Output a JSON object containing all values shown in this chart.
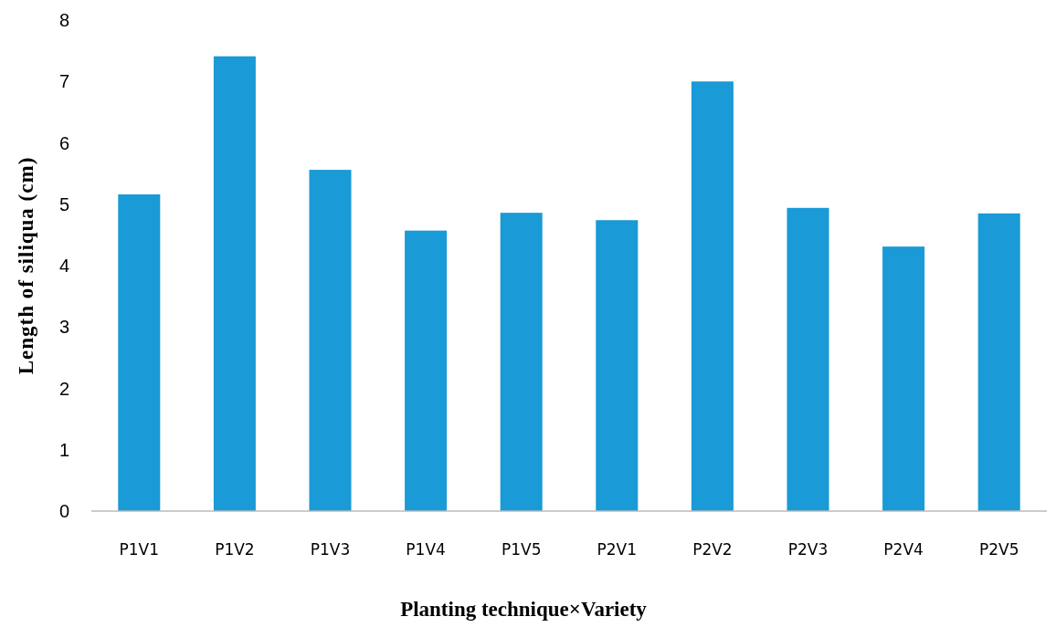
{
  "chart_data": {
    "type": "bar",
    "xlabel": "Planting technique×Variety",
    "ylabel": "Length of siliqua (cm)",
    "categories": [
      "P1V1",
      "P1V2",
      "P1V3",
      "P1V4",
      "P1V5",
      "P2V1",
      "P2V2",
      "P2V3",
      "P2V4",
      "P2V5"
    ],
    "values": [
      5.16,
      7.41,
      5.56,
      4.57,
      4.86,
      4.74,
      7.0,
      4.94,
      4.31,
      4.85
    ],
    "color": "#1a9ad6",
    "ylim": [
      0,
      8
    ],
    "yticks": [
      0,
      1,
      2,
      3,
      4,
      5,
      6,
      7,
      8
    ],
    "grid": false
  }
}
